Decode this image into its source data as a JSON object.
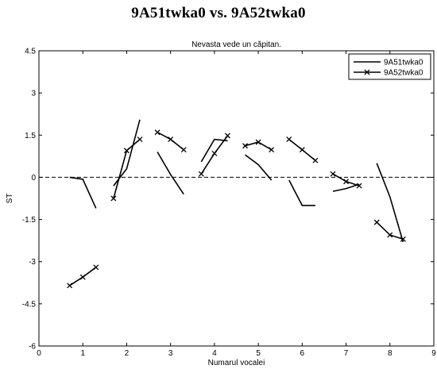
{
  "heading": "9A51twka0 vs. 9A52twka0",
  "chart_data": {
    "type": "line",
    "title": "Nevasta vede un căpitan.",
    "xlabel": "Numarul vocalei",
    "ylabel": "ST",
    "xlim": [
      0,
      9
    ],
    "ylim": [
      -6,
      4.5
    ],
    "xticks": [
      "0",
      "1",
      "2",
      "3",
      "4",
      "5",
      "6",
      "7",
      "8",
      "9"
    ],
    "yticks": [
      "-6",
      "-4.5",
      "-3",
      "-1.5",
      "0",
      "1.5",
      "3",
      "4.5"
    ],
    "reference_line": {
      "y": 0,
      "style": "dashed"
    },
    "grid": false,
    "legend": "top-right",
    "series": [
      {
        "name": "9A51twka0",
        "marker": "none",
        "color": "#000000",
        "segments": [
          [
            [
              0.7,
              0.0
            ],
            [
              1.0,
              -0.07
            ],
            [
              1.3,
              -1.1
            ]
          ],
          [
            [
              1.7,
              -0.3
            ],
            [
              2.0,
              0.3
            ],
            [
              2.3,
              2.05
            ]
          ],
          [
            [
              2.7,
              0.9
            ],
            [
              3.0,
              0.1
            ],
            [
              3.3,
              -0.6
            ]
          ],
          [
            [
              3.7,
              0.55
            ],
            [
              4.0,
              1.35
            ],
            [
              4.3,
              1.3
            ]
          ],
          [
            [
              4.7,
              0.8
            ],
            [
              5.0,
              0.45
            ],
            [
              5.3,
              -0.1
            ]
          ],
          [
            [
              5.7,
              -0.1
            ],
            [
              6.0,
              -1.0
            ],
            [
              6.3,
              -1.0
            ]
          ],
          [
            [
              6.7,
              -0.5
            ],
            [
              7.0,
              -0.4
            ],
            [
              7.3,
              -0.25
            ]
          ],
          [
            [
              7.7,
              0.5
            ],
            [
              8.0,
              -0.7
            ],
            [
              8.3,
              -2.3
            ]
          ]
        ]
      },
      {
        "name": "9A52twka0",
        "marker": "x",
        "color": "#000000",
        "segments": [
          [
            [
              0.7,
              -3.85
            ],
            [
              1.0,
              -3.55
            ],
            [
              1.3,
              -3.2
            ]
          ],
          [
            [
              1.7,
              -0.75
            ],
            [
              2.0,
              0.95
            ],
            [
              2.3,
              1.35
            ]
          ],
          [
            [
              2.7,
              1.6
            ],
            [
              3.0,
              1.35
            ],
            [
              3.3,
              0.98
            ]
          ],
          [
            [
              3.7,
              0.12
            ],
            [
              4.0,
              0.85
            ],
            [
              4.3,
              1.48
            ]
          ],
          [
            [
              4.7,
              1.12
            ],
            [
              5.0,
              1.25
            ],
            [
              5.3,
              0.98
            ]
          ],
          [
            [
              5.7,
              1.35
            ],
            [
              6.0,
              0.98
            ],
            [
              6.3,
              0.6
            ]
          ],
          [
            [
              6.7,
              0.12
            ],
            [
              7.0,
              -0.15
            ],
            [
              7.3,
              -0.3
            ]
          ],
          [
            [
              7.7,
              -1.6
            ],
            [
              8.0,
              -2.05
            ],
            [
              8.3,
              -2.2
            ]
          ]
        ]
      }
    ]
  }
}
